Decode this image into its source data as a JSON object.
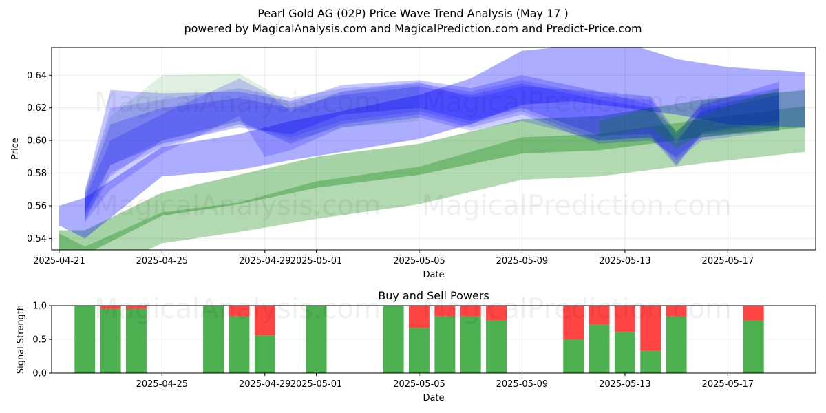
{
  "title": "Pearl Gold AG (02P) Price Wave Trend Analysis (May 17 )",
  "subtitle": "powered by MagicalAnalysis.com and MagicalPrediction.com and Predict-Price.com",
  "watermarks": [
    "MagicalAnalysis.com",
    "MagicalPrediction.com"
  ],
  "chart_data": [
    {
      "type": "area",
      "title": "",
      "xlabel": "Date",
      "ylabel": "Price",
      "x_range": [
        "2025-04-20T17:00",
        "2025-05-20T10:00"
      ],
      "ylim": [
        0.533,
        0.657
      ],
      "x_ticks": [
        "2025-04-21",
        "2025-04-25",
        "2025-04-29",
        "2025-05-01",
        "2025-05-05",
        "2025-05-09",
        "2025-05-13",
        "2025-05-17"
      ],
      "y_ticks": [
        0.54,
        0.56,
        0.58,
        0.6,
        0.62,
        0.64
      ],
      "grid": true,
      "band_colors": {
        "blue": "#0000ff",
        "green": "#008000"
      },
      "bands": [
        {
          "color": "green",
          "opacity": 0.3,
          "x": [
            "2025-04-21",
            "2025-04-22",
            "2025-04-25",
            "2025-04-28",
            "2025-05-01",
            "2025-05-05",
            "2025-05-09",
            "2025-05-12",
            "2025-05-16",
            "2025-05-20"
          ],
          "upper": [
            0.543,
            0.535,
            0.556,
            0.562,
            0.575,
            0.584,
            0.602,
            0.604,
            0.613,
            0.621
          ],
          "lower": [
            0.525,
            0.515,
            0.537,
            0.544,
            0.552,
            0.561,
            0.576,
            0.578,
            0.586,
            0.593
          ]
        },
        {
          "color": "green",
          "opacity": 0.35,
          "x": [
            "2025-04-21",
            "2025-04-22",
            "2025-04-25",
            "2025-04-28",
            "2025-05-01",
            "2025-05-05",
            "2025-05-09",
            "2025-05-12",
            "2025-05-16",
            "2025-05-20"
          ],
          "upper": [
            0.545,
            0.545,
            0.568,
            0.579,
            0.59,
            0.598,
            0.613,
            0.615,
            0.625,
            0.631
          ],
          "lower": [
            0.533,
            0.53,
            0.554,
            0.561,
            0.571,
            0.579,
            0.592,
            0.594,
            0.602,
            0.608
          ]
        },
        {
          "color": "green",
          "opacity": 0.12,
          "x": [
            "2025-04-22",
            "2025-04-23",
            "2025-04-25",
            "2025-04-28",
            "2025-04-30",
            "2025-05-02",
            "2025-05-05"
          ],
          "upper": [
            0.57,
            0.615,
            0.64,
            0.641,
            0.623,
            0.63,
            0.634
          ],
          "lower": [
            0.55,
            0.585,
            0.6,
            0.61,
            0.6,
            0.608,
            0.612
          ]
        },
        {
          "color": "blue",
          "opacity": 0.32,
          "x": [
            "2025-04-21",
            "2025-04-22",
            "2025-04-25",
            "2025-04-28",
            "2025-04-30",
            "2025-05-02",
            "2025-05-05",
            "2025-05-07",
            "2025-05-09",
            "2025-05-11",
            "2025-05-13",
            "2025-05-15",
            "2025-05-17",
            "2025-05-20"
          ],
          "upper": [
            0.56,
            0.565,
            0.596,
            0.604,
            0.612,
            0.618,
            0.628,
            0.638,
            0.655,
            0.658,
            0.66,
            0.65,
            0.645,
            0.642
          ],
          "lower": [
            0.548,
            0.54,
            0.578,
            0.582,
            0.588,
            0.593,
            0.601,
            0.61,
            0.622,
            0.624,
            0.62,
            0.616,
            0.61,
            0.608
          ]
        },
        {
          "color": "blue",
          "opacity": 0.22,
          "x": [
            "2025-04-22",
            "2025-04-23",
            "2025-04-25",
            "2025-04-28",
            "2025-04-30",
            "2025-05-02",
            "2025-05-05",
            "2025-05-07",
            "2025-05-09",
            "2025-05-12",
            "2025-05-14",
            "2025-05-15",
            "2025-05-16",
            "2025-05-19"
          ],
          "upper": [
            0.569,
            0.631,
            0.629,
            0.63,
            0.624,
            0.634,
            0.637,
            0.632,
            0.64,
            0.63,
            0.627,
            0.605,
            0.622,
            0.636
          ],
          "lower": [
            0.556,
            0.585,
            0.598,
            0.608,
            0.604,
            0.616,
            0.62,
            0.612,
            0.62,
            0.603,
            0.604,
            0.585,
            0.605,
            0.612
          ]
        },
        {
          "color": "blue",
          "opacity": 0.2,
          "x": [
            "2025-04-22",
            "2025-04-23",
            "2025-04-25",
            "2025-04-28",
            "2025-04-30",
            "2025-05-02",
            "2025-05-05",
            "2025-05-07",
            "2025-05-09",
            "2025-05-12",
            "2025-05-14",
            "2025-05-15",
            "2025-05-16",
            "2025-05-19"
          ],
          "upper": [
            0.566,
            0.61,
            0.62,
            0.626,
            0.62,
            0.628,
            0.633,
            0.628,
            0.635,
            0.625,
            0.62,
            0.6,
            0.618,
            0.628
          ],
          "lower": [
            0.552,
            0.578,
            0.6,
            0.612,
            0.598,
            0.61,
            0.616,
            0.608,
            0.616,
            0.598,
            0.6,
            0.59,
            0.602,
            0.608
          ]
        },
        {
          "color": "blue",
          "opacity": 0.18,
          "x": [
            "2025-04-22",
            "2025-04-23",
            "2025-04-25",
            "2025-04-28",
            "2025-04-29",
            "2025-04-30",
            "2025-05-02",
            "2025-05-05",
            "2025-05-07",
            "2025-05-09",
            "2025-05-12",
            "2025-05-14",
            "2025-05-15",
            "2025-05-16",
            "2025-05-19"
          ],
          "upper": [
            0.564,
            0.6,
            0.616,
            0.638,
            0.63,
            0.618,
            0.63,
            0.636,
            0.626,
            0.633,
            0.63,
            0.622,
            0.598,
            0.62,
            0.63
          ],
          "lower": [
            0.55,
            0.57,
            0.592,
            0.615,
            0.59,
            0.594,
            0.608,
            0.614,
            0.606,
            0.612,
            0.6,
            0.602,
            0.588,
            0.6,
            0.606
          ]
        },
        {
          "color": "blue",
          "opacity": 0.15,
          "x": [
            "2025-04-22",
            "2025-04-23",
            "2025-04-25",
            "2025-04-28",
            "2025-04-30",
            "2025-05-02",
            "2025-05-05",
            "2025-05-07",
            "2025-05-09",
            "2025-05-12",
            "2025-05-14",
            "2025-05-15",
            "2025-05-16",
            "2025-05-19"
          ],
          "upper": [
            0.568,
            0.62,
            0.625,
            0.632,
            0.626,
            0.632,
            0.635,
            0.63,
            0.637,
            0.627,
            0.625,
            0.603,
            0.624,
            0.632
          ],
          "lower": [
            0.554,
            0.58,
            0.596,
            0.61,
            0.602,
            0.612,
            0.618,
            0.61,
            0.618,
            0.6,
            0.602,
            0.584,
            0.604,
            0.61
          ]
        },
        {
          "color": "green",
          "opacity": 0.25,
          "x": [
            "2025-05-12",
            "2025-05-14",
            "2025-05-15",
            "2025-05-16",
            "2025-05-19"
          ],
          "upper": [
            0.612,
            0.62,
            0.606,
            0.616,
            0.632
          ],
          "lower": [
            0.602,
            0.608,
            0.595,
            0.604,
            0.606
          ]
        }
      ]
    },
    {
      "type": "bar",
      "title": "Buy and Sell Powers",
      "xlabel": "Date",
      "ylabel": "Signal Strength",
      "ylim": [
        0,
        1
      ],
      "y_ticks": [
        "0.0",
        "0.5",
        "1.0"
      ],
      "x_range": [
        "2025-04-20T17:00",
        "2025-05-20T10:00"
      ],
      "x_ticks": [
        "2025-04-25",
        "2025-04-29",
        "2025-05-01",
        "2025-05-05",
        "2025-05-09",
        "2025-05-13",
        "2025-05-17"
      ],
      "grid": true,
      "colors": {
        "buy": "#4caf50",
        "sell": "#ff4444"
      },
      "bars": [
        {
          "date": "2025-04-22",
          "buy": 1.0,
          "sell": 0.0
        },
        {
          "date": "2025-04-23",
          "buy": 0.95,
          "sell": 0.05
        },
        {
          "date": "2025-04-24",
          "buy": 0.95,
          "sell": 0.05
        },
        {
          "date": "2025-04-27",
          "buy": 1.0,
          "sell": 0.0
        },
        {
          "date": "2025-04-28",
          "buy": 0.84,
          "sell": 0.16
        },
        {
          "date": "2025-04-29",
          "buy": 0.56,
          "sell": 0.44
        },
        {
          "date": "2025-05-01",
          "buy": 1.0,
          "sell": 0.0
        },
        {
          "date": "2025-05-04",
          "buy": 1.0,
          "sell": 0.0
        },
        {
          "date": "2025-05-05",
          "buy": 0.67,
          "sell": 0.33
        },
        {
          "date": "2025-05-06",
          "buy": 0.84,
          "sell": 0.16
        },
        {
          "date": "2025-05-07",
          "buy": 0.84,
          "sell": 0.16
        },
        {
          "date": "2025-05-08",
          "buy": 0.78,
          "sell": 0.22
        },
        {
          "date": "2025-05-11",
          "buy": 0.5,
          "sell": 0.5
        },
        {
          "date": "2025-05-12",
          "buy": 0.72,
          "sell": 0.28
        },
        {
          "date": "2025-05-13",
          "buy": 0.61,
          "sell": 0.39
        },
        {
          "date": "2025-05-14",
          "buy": 0.33,
          "sell": 0.67
        },
        {
          "date": "2025-05-15",
          "buy": 0.84,
          "sell": 0.16
        },
        {
          "date": "2025-05-18",
          "buy": 0.78,
          "sell": 0.22
        }
      ]
    }
  ]
}
